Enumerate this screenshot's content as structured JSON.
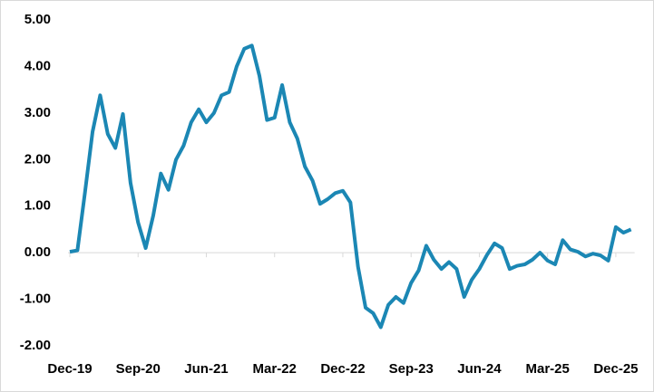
{
  "chart_data": {
    "type": "line",
    "categories": [
      "Dec-19",
      null,
      null,
      null,
      null,
      null,
      null,
      null,
      null,
      "Sep-20",
      null,
      null,
      null,
      null,
      null,
      null,
      null,
      null,
      "Jun-21",
      null,
      null,
      null,
      null,
      null,
      null,
      null,
      null,
      "Mar-22",
      null,
      null,
      null,
      null,
      null,
      null,
      null,
      null,
      "Dec-22",
      null,
      null,
      null,
      null,
      null,
      null,
      null,
      null,
      "Sep-23",
      null,
      null,
      null,
      null,
      null,
      null,
      null,
      null,
      "Jun-24",
      null,
      null,
      null,
      null,
      null,
      null,
      null,
      null,
      "Mar-25",
      null,
      null,
      null,
      null,
      null,
      null,
      null,
      null,
      "Dec-25",
      null,
      null
    ],
    "values": [
      0.02,
      0.05,
      1.3,
      2.6,
      3.38,
      2.55,
      2.25,
      2.98,
      1.5,
      0.65,
      0.1,
      0.8,
      1.7,
      1.35,
      2.0,
      2.3,
      2.8,
      3.08,
      2.8,
      3.0,
      3.38,
      3.45,
      4.0,
      4.38,
      4.45,
      3.8,
      2.85,
      2.9,
      3.6,
      2.8,
      2.45,
      1.85,
      1.55,
      1.05,
      1.15,
      1.28,
      1.33,
      1.08,
      -0.3,
      -1.18,
      -1.3,
      -1.6,
      -1.12,
      -0.95,
      -1.08,
      -0.65,
      -0.38,
      0.15,
      -0.15,
      -0.35,
      -0.2,
      -0.35,
      -0.95,
      -0.58,
      -0.35,
      -0.05,
      0.2,
      0.1,
      -0.35,
      -0.28,
      -0.25,
      -0.15,
      0.0,
      -0.17,
      -0.25,
      0.27,
      0.07,
      0.02,
      -0.08,
      -0.02,
      -0.06,
      -0.17,
      0.55,
      0.43,
      0.5
    ],
    "color": "#1b87b4",
    "ylim": [
      -2,
      5
    ],
    "yticks": [
      {
        "value": -2,
        "label": "-2.00"
      },
      {
        "value": -1,
        "label": "-1.00"
      },
      {
        "value": 0,
        "label": "0.00"
      },
      {
        "value": 1,
        "label": "1.00"
      },
      {
        "value": 2,
        "label": "2.00"
      },
      {
        "value": 3,
        "label": "3.00"
      },
      {
        "value": 4,
        "label": "4.00"
      },
      {
        "value": 5,
        "label": "5.00"
      }
    ],
    "grid": false
  }
}
